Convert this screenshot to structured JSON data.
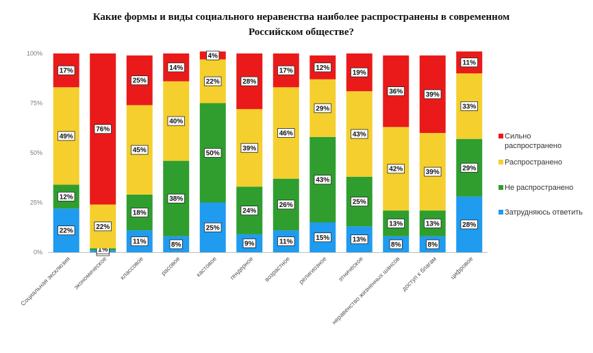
{
  "chart_data": {
    "type": "bar",
    "stacked": true,
    "title_line1": "Какие формы и виды социального неравенства наиболее распространены в современном",
    "title_line2": "Российском обществе?",
    "categories": [
      "Социальная эксклюзия",
      "экономическое",
      "классовое",
      "расовое",
      "кастовое",
      "гендерное",
      "возрастное",
      "религиозное",
      "этническое",
      "неравенство жизненных шансов",
      "доступ к благам",
      "цифровое"
    ],
    "series": [
      {
        "name": "Затрудняюсь ответить",
        "color": "#1f9bf0",
        "values": [
          22,
          1,
          11,
          8,
          25,
          9,
          11,
          15,
          13,
          8,
          8,
          28
        ]
      },
      {
        "name": "Не распространено",
        "color": "#2f9e2f",
        "values": [
          12,
          1,
          18,
          38,
          50,
          24,
          26,
          43,
          25,
          13,
          13,
          29
        ]
      },
      {
        "name": "Распространено",
        "color": "#f4cf2e",
        "values": [
          49,
          22,
          45,
          40,
          22,
          39,
          46,
          29,
          43,
          42,
          39,
          33
        ]
      },
      {
        "name": "Сильно распространено",
        "color": "#ea1a1a",
        "values": [
          17,
          76,
          25,
          14,
          4,
          28,
          17,
          12,
          19,
          36,
          39,
          11
        ]
      }
    ],
    "ylim": [
      0,
      100
    ],
    "yticks": [
      "0%",
      "25%",
      "50%",
      "75%",
      "100%"
    ],
    "legend_position": "right"
  },
  "legend": {
    "strong_line1": "Сильно",
    "strong_line2": "распространено",
    "common": "Распространено",
    "not_common": "Не распространено",
    "unsure": "Затрудняюсь ответить"
  }
}
